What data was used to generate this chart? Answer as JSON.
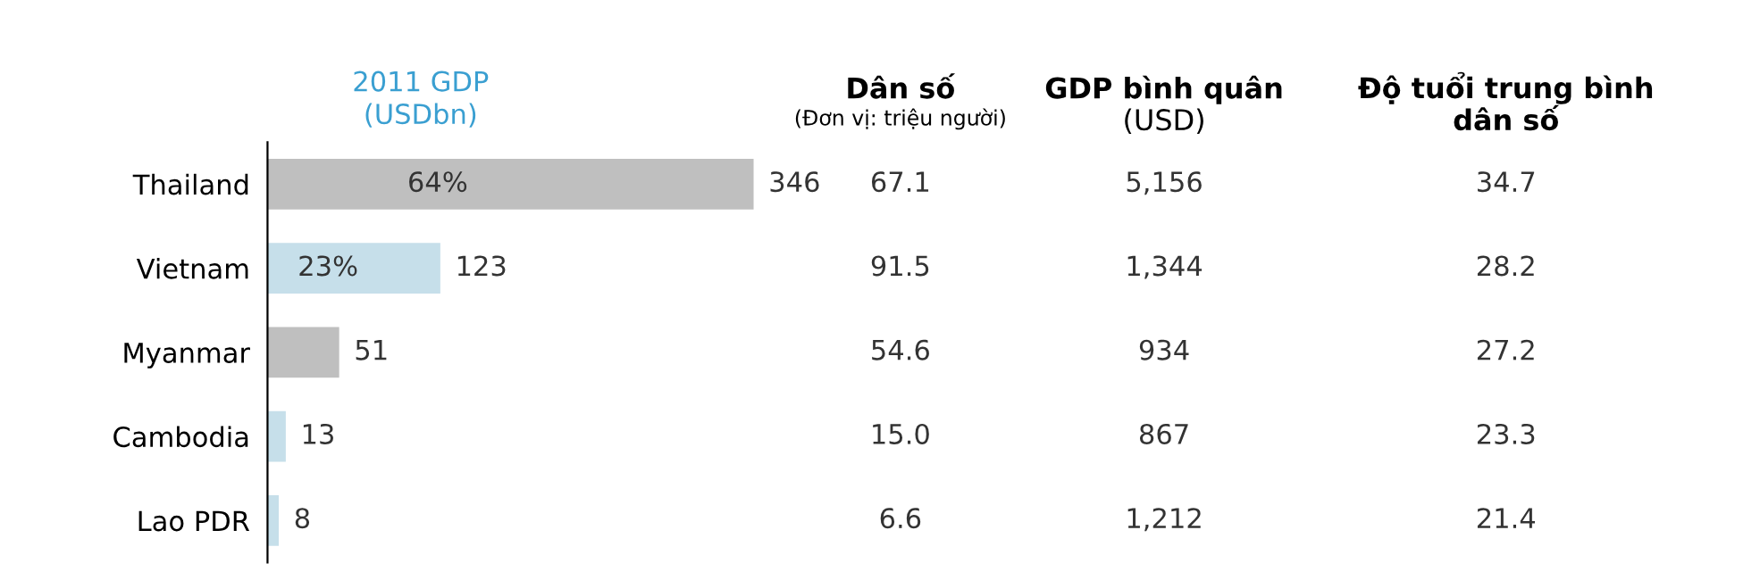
{
  "chart_data": [
    {
      "type": "bar",
      "orientation": "horizontal",
      "title": "2011 GDP\n(USDbn)",
      "categories": [
        "Thailand",
        "Vietnam",
        "Myanmar",
        "Cambodia",
        "Lao PDR"
      ],
      "values": [
        346,
        123,
        51,
        13,
        8
      ],
      "colors": [
        "#bfbfbf",
        "#c6dfea",
        "#bfbfbf",
        "#c6dfea",
        "#c6dfea"
      ],
      "data_labels": true,
      "tick_labels": "y",
      "annotations": [
        "64%",
        "23%"
      ]
    },
    {
      "type": "other",
      "categories": [
        "Dân số\n(Đơn vị: triệu người)",
        "GDP bình quân\n(USD)",
        "Độ tuổi trung bình\ndân số"
      ],
      "annotations": [
        "67.1",
        "5,156",
        "34.7",
        "91.5",
        "1,344",
        "28.2",
        "54.6",
        "934",
        "27.2",
        "15.0",
        "867",
        "23.3",
        "6.6",
        "1,212",
        "21.4"
      ]
    }
  ]
}
